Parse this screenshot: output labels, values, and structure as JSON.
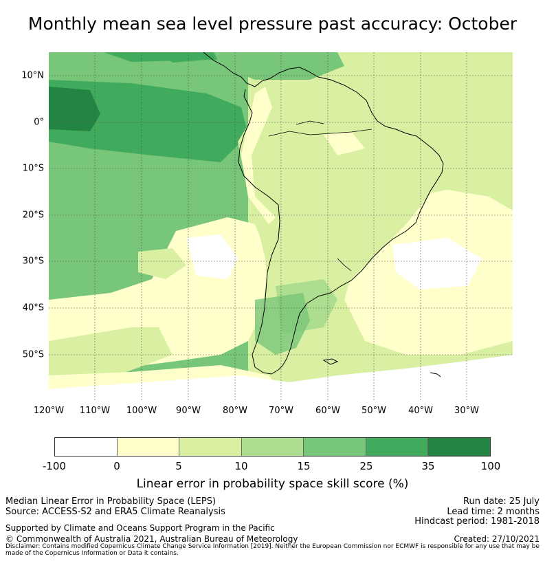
{
  "title": "Monthly mean sea level pressure past accuracy: October",
  "map": {
    "lat_labels": [
      "10°N",
      "0°",
      "10°S",
      "20°S",
      "30°S",
      "40°S",
      "50°S"
    ],
    "lon_labels": [
      "120°W",
      "110°W",
      "100°W",
      "90°W",
      "80°W",
      "70°W",
      "60°W",
      "50°W",
      "40°W",
      "30°W"
    ],
    "grid": true
  },
  "colorbar": {
    "ticks": [
      "-100",
      "0",
      "5",
      "10",
      "15",
      "25",
      "35",
      "100"
    ],
    "colors": [
      "#ffffff",
      "#ffffcc",
      "#d9f0a3",
      "#addd8e",
      "#78c679",
      "#41ab5d",
      "#238443"
    ],
    "label": "Linear error in probability space skill score (%)"
  },
  "footer": {
    "line1_left": "Median Linear Error in Probability Space (LEPS)",
    "line2_left": "Source: ACCESS-S2 and ERA5 Climate Reanalysis",
    "line3_left": "Supported by Climate and Oceans Support Program in the Pacific",
    "line4_left": "© Commonwealth of Australia 2021, Australian Bureau of Meteorology",
    "run_date": "Run date: 25 July",
    "lead_time": "Lead time: 2 months",
    "hindcast": "Hindcast period: 1981-2018",
    "created": "Created: 27/10/2021",
    "disclaimer": "Disclaimer: Contains modified Copernicus Climate Change Service Information [2019]. Neither the European Commission nor ECMWF is responsible for any use that may be made of the Copernicus Information or Data it contains."
  }
}
